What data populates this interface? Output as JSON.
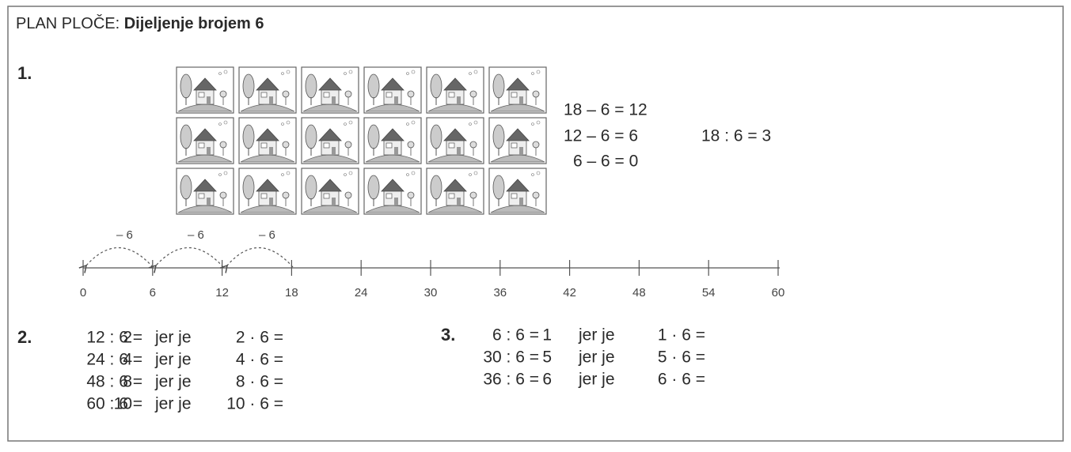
{
  "header": {
    "prefix": "PLAN PLOČE:",
    "title": "Dijeljenje brojem 6"
  },
  "task1": {
    "label": "1.",
    "subtractions": [
      "18 – 6 = 12",
      "12 – 6 = 6",
      "6 – 6 = 0"
    ],
    "division": "18 : 6 = 3",
    "jumps": [
      "– 6",
      "– 6",
      "– 6"
    ],
    "number_line": [
      0,
      6,
      12,
      18,
      24,
      30,
      36,
      42,
      48,
      54,
      60
    ]
  },
  "task2": {
    "label": "2.",
    "rows": [
      [
        "12 : 6 =",
        "2",
        "jer je",
        "2 · 6 ="
      ],
      [
        "24 : 6 =",
        "4",
        "jer je",
        "4 · 6 ="
      ],
      [
        "48 : 6 =",
        "8",
        "jer je",
        "8 · 6 ="
      ],
      [
        "60 : 6 =",
        "10",
        "jer je",
        "10 · 6 ="
      ]
    ]
  },
  "task3": {
    "label": "3.",
    "rows": [
      [
        "6 : 6 =",
        "1",
        "jer je",
        "1 · 6 ="
      ],
      [
        "30 : 6 =",
        "5",
        "jer je",
        "5 · 6 ="
      ],
      [
        "36 : 6 =",
        "6",
        "jer je",
        "6 · 6 ="
      ]
    ]
  }
}
